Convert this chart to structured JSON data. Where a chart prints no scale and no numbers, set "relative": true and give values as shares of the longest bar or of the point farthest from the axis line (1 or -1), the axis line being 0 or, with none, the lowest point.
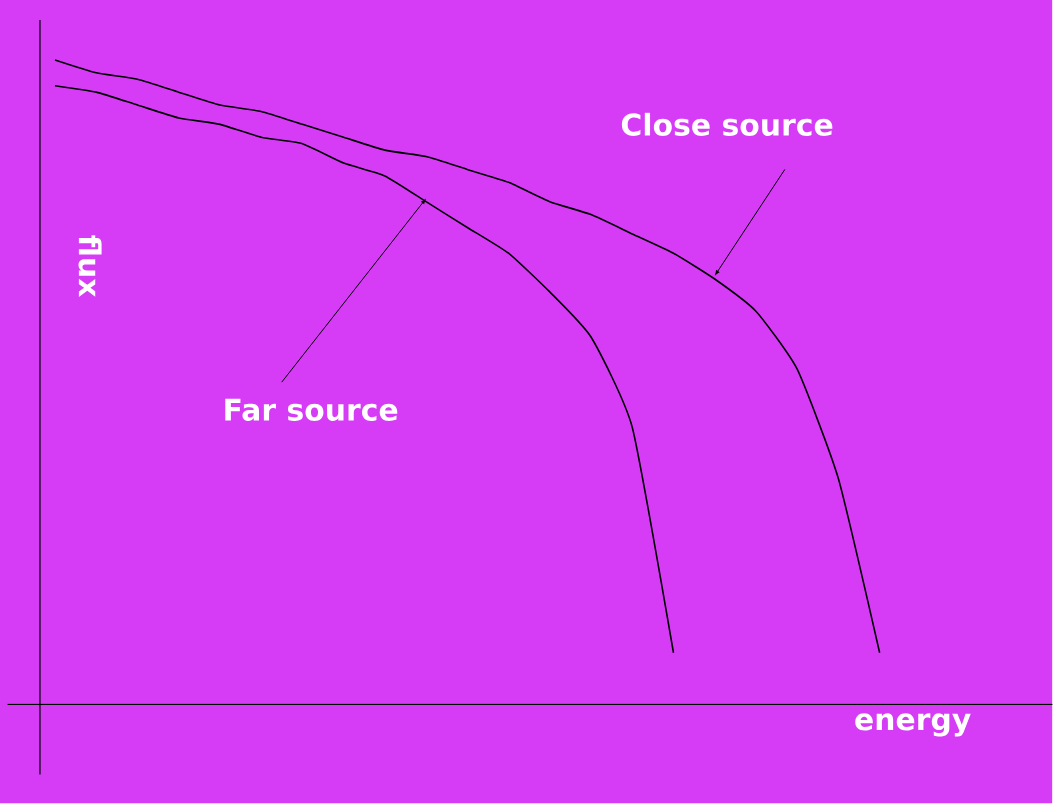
{
  "chart_data": {
    "type": "line",
    "relative": true,
    "xlabel": "energy",
    "ylabel": "flux",
    "categories": [
      null,
      null,
      null,
      null,
      null,
      null,
      null,
      null,
      null,
      null,
      null,
      null,
      null,
      null,
      null,
      null,
      null,
      null,
      null,
      null,
      null
    ],
    "series": [
      {
        "name": "Close source",
        "color": "#000000",
        "values": [
          1.0,
          0.98,
          0.97,
          0.95,
          0.93,
          0.92,
          0.9,
          0.88,
          0.86,
          0.85,
          0.83,
          0.81,
          0.78,
          0.76,
          0.73,
          0.7,
          0.66,
          0.61,
          0.52,
          0.35,
          0.08
        ]
      },
      {
        "name": "Far source",
        "color": "#000000",
        "values": [
          0.96,
          0.95,
          0.93,
          0.91,
          0.9,
          0.88,
          0.87,
          0.84,
          0.82,
          0.78,
          0.74,
          0.7,
          0.64,
          0.57,
          0.43,
          0.08,
          null,
          null,
          null,
          null,
          null
        ]
      }
    ]
  }
}
